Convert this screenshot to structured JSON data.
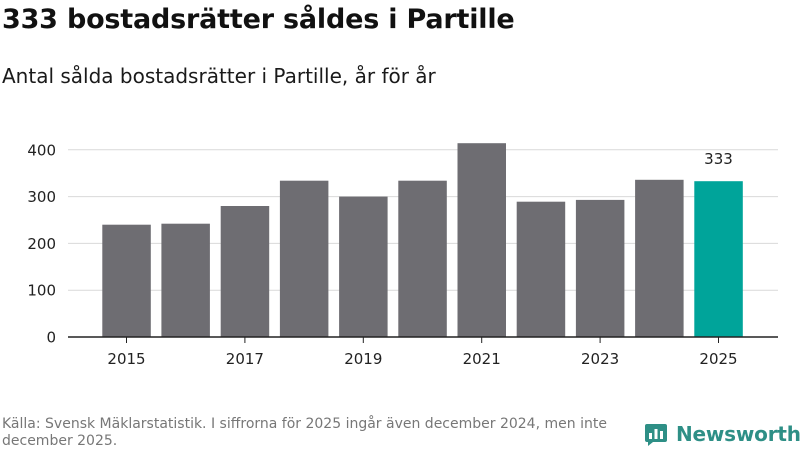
{
  "title": "333 bostadsrätter såldes i Partille",
  "subtitle": "Antal sålda bostadsrätter i Partille, år för år",
  "source": "Källa: Svensk Mäklarstatistik. I siffrorna för 2025 ingår även december 2024, men inte december 2025.",
  "brand": {
    "name": "Newsworthy",
    "icon": "newsworthy-bar-icon",
    "color": "#2e8f86"
  },
  "colors": {
    "bar": "#6e6d72",
    "highlight": "#00a49a",
    "grid": "#d9d9d9",
    "axis": "#222222"
  },
  "chart_data": {
    "type": "bar",
    "title": "333 bostadsrätter såldes i Partille",
    "subtitle": "Antal sålda bostadsrätter i Partille, år för år",
    "xlabel": "",
    "ylabel": "",
    "categories": [
      "2015",
      "2016",
      "2017",
      "2018",
      "2019",
      "2020",
      "2021",
      "2022",
      "2023",
      "2024",
      "2025"
    ],
    "values": [
      240,
      242,
      280,
      334,
      300,
      334,
      414,
      289,
      293,
      336,
      333
    ],
    "x_tick_labels": [
      "2015",
      "",
      "2017",
      "",
      "2019",
      "",
      "2021",
      "",
      "2023",
      "",
      "2025"
    ],
    "yticks": [
      0,
      100,
      200,
      300,
      400
    ],
    "ylim": [
      0,
      420
    ],
    "highlight_index": 10,
    "data_labels": [
      {
        "index": 10,
        "text": "333"
      }
    ],
    "grid": true,
    "legend": "none"
  }
}
